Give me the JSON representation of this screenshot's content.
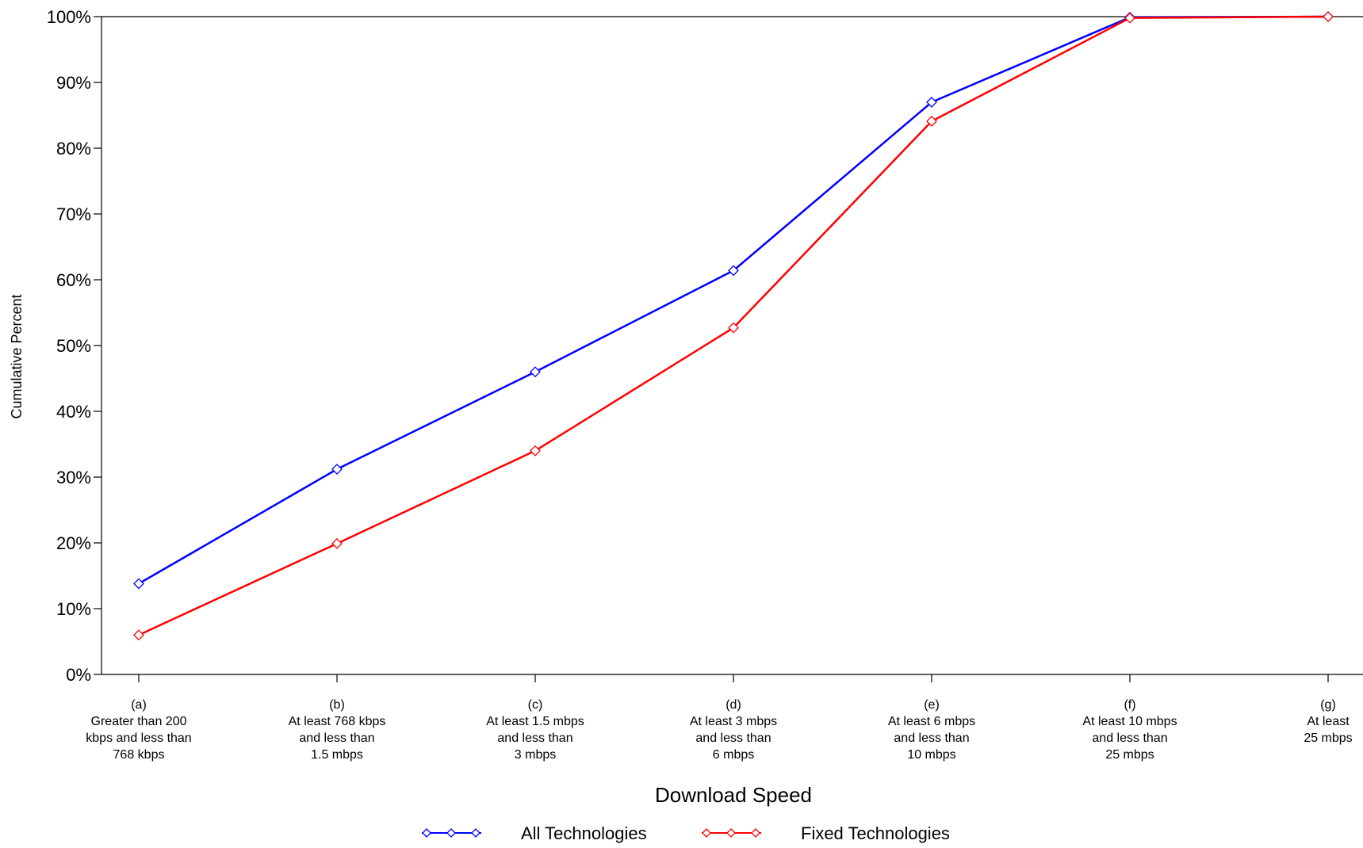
{
  "chart_data": {
    "type": "line",
    "title": "",
    "xlabel": "Download Speed",
    "ylabel": "Cumulative Percent",
    "ylim": [
      0,
      100
    ],
    "yticks": [
      "0%",
      "10%",
      "20%",
      "30%",
      "40%",
      "50%",
      "60%",
      "70%",
      "80%",
      "90%",
      "100%"
    ],
    "categories": [
      [
        "(a)",
        "Greater than 200",
        "kbps and less than",
        "768 kbps"
      ],
      [
        "(b)",
        "At least 768 kbps",
        "and less than",
        "1.5 mbps"
      ],
      [
        "(c)",
        "At least 1.5 mbps",
        "and less than",
        "3 mbps"
      ],
      [
        "(d)",
        "At least 3 mbps",
        "and less than",
        "6 mbps"
      ],
      [
        "(e)",
        "At least 6 mbps",
        "and less than",
        "10 mbps"
      ],
      [
        "(f)",
        "At least 10 mbps",
        "and less than",
        "25 mbps"
      ],
      [
        "(g)",
        "At least",
        "25 mbps"
      ]
    ],
    "series": [
      {
        "name": "All Technologies",
        "color": "#0000ff",
        "marker": "diamond",
        "values": [
          13.8,
          31.2,
          46.0,
          61.4,
          87.0,
          99.9,
          100.0
        ]
      },
      {
        "name": "Fixed Technologies",
        "color": "#ff0000",
        "marker": "diamond",
        "values": [
          6.0,
          19.9,
          34.0,
          52.7,
          84.1,
          99.8,
          100.0
        ]
      }
    ],
    "grid": false,
    "legend_position": "bottom-center"
  }
}
